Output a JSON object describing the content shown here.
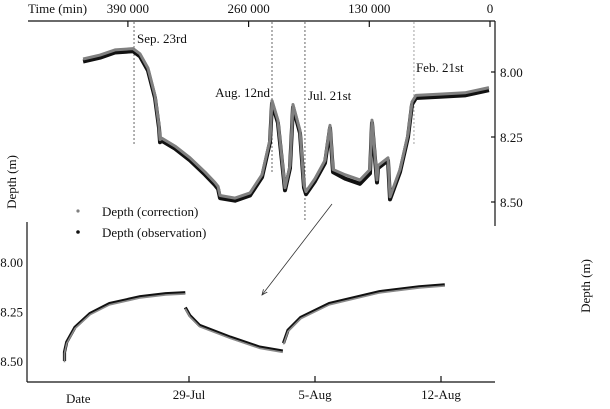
{
  "chart_data": [
    {
      "type": "line",
      "xlabel": "Time (min)",
      "ylabel": "Depth (m)",
      "x_reversed": true,
      "y_inverted": true,
      "xlim": [
        0,
        460000
      ],
      "ylim": [
        7.85,
        8.58
      ],
      "x_ticks": [
        {
          "value": 390000,
          "label": "390 000"
        },
        {
          "value": 260000,
          "label": "260 000"
        },
        {
          "value": 130000,
          "label": "130 000"
        },
        {
          "value": 0,
          "label": "0"
        }
      ],
      "y_ticks": [
        {
          "value": 8.0,
          "label": "8.00"
        },
        {
          "value": 8.25,
          "label": "8.25"
        },
        {
          "value": 8.5,
          "label": "8.50"
        }
      ],
      "events": [
        {
          "t": 383400,
          "label": "Sep. 23rd"
        },
        {
          "t": 234800,
          "label": "Aug. 12nd"
        },
        {
          "t": 199300,
          "label": "Jul. 21st"
        },
        {
          "t": 81900,
          "label": "Feb. 21st"
        }
      ],
      "series": [
        {
          "name": "Depth (observation)",
          "color": "#111111",
          "points": [
            [
              438300,
              7.96
            ],
            [
              420000,
              7.945
            ],
            [
              403900,
              7.925
            ],
            [
              384500,
              7.92
            ],
            [
              377000,
              7.94
            ],
            [
              368300,
              7.995
            ],
            [
              360800,
              8.1
            ],
            [
              356500,
              8.215
            ],
            [
              355400,
              8.27
            ],
            [
              353300,
              8.265
            ],
            [
              339300,
              8.295
            ],
            [
              323100,
              8.34
            ],
            [
              307000,
              8.395
            ],
            [
              296200,
              8.435
            ],
            [
              292900,
              8.45
            ],
            [
              290800,
              8.485
            ],
            [
              274600,
              8.495
            ],
            [
              258500,
              8.475
            ],
            [
              245600,
              8.405
            ],
            [
              237000,
              8.27
            ],
            [
              234800,
              8.12
            ],
            [
              228400,
              8.195
            ],
            [
              220800,
              8.455
            ],
            [
              215400,
              8.37
            ],
            [
              212200,
              8.135
            ],
            [
              204600,
              8.235
            ],
            [
              200300,
              8.445
            ],
            [
              198200,
              8.47
            ],
            [
              188500,
              8.42
            ],
            [
              177700,
              8.35
            ],
            [
              172300,
              8.215
            ],
            [
              169100,
              8.385
            ],
            [
              156200,
              8.41
            ],
            [
              140000,
              8.43
            ],
            [
              129200,
              8.39
            ],
            [
              127100,
              8.195
            ],
            [
              121700,
              8.425
            ],
            [
              120600,
              8.37
            ],
            [
              109900,
              8.34
            ],
            [
              107700,
              8.49
            ],
            [
              96900,
              8.385
            ],
            [
              88300,
              8.25
            ],
            [
              84000,
              8.125
            ],
            [
              79700,
              8.1
            ],
            [
              53900,
              8.095
            ],
            [
              27000,
              8.09
            ],
            [
              1100,
              8.07
            ]
          ]
        },
        {
          "name": "Depth (correction)",
          "color": "#808080",
          "points": [
            [
              438300,
              7.95
            ],
            [
              420000,
              7.935
            ],
            [
              403900,
              7.915
            ],
            [
              384500,
              7.91
            ],
            [
              377000,
              7.93
            ],
            [
              368300,
              7.985
            ],
            [
              360800,
              8.09
            ],
            [
              356500,
              8.205
            ],
            [
              355400,
              8.26
            ],
            [
              353300,
              8.255
            ],
            [
              339300,
              8.285
            ],
            [
              323100,
              8.33
            ],
            [
              307000,
              8.385
            ],
            [
              296200,
              8.425
            ],
            [
              292900,
              8.44
            ],
            [
              290800,
              8.475
            ],
            [
              274600,
              8.485
            ],
            [
              258500,
              8.465
            ],
            [
              245600,
              8.395
            ],
            [
              237000,
              8.26
            ],
            [
              234800,
              8.11
            ],
            [
              228400,
              8.185
            ],
            [
              220800,
              8.445
            ],
            [
              215400,
              8.36
            ],
            [
              212200,
              8.125
            ],
            [
              204600,
              8.225
            ],
            [
              200300,
              8.435
            ],
            [
              198200,
              8.46
            ],
            [
              188500,
              8.41
            ],
            [
              177700,
              8.34
            ],
            [
              172300,
              8.205
            ],
            [
              169100,
              8.375
            ],
            [
              156200,
              8.395
            ],
            [
              140000,
              8.415
            ],
            [
              129200,
              8.375
            ],
            [
              127100,
              8.185
            ],
            [
              121700,
              8.415
            ],
            [
              120600,
              8.36
            ],
            [
              109900,
              8.33
            ],
            [
              107700,
              8.48
            ],
            [
              96900,
              8.375
            ],
            [
              88300,
              8.24
            ],
            [
              84000,
              8.115
            ],
            [
              79700,
              8.09
            ],
            [
              53900,
              8.085
            ],
            [
              27000,
              8.08
            ],
            [
              1100,
              8.06
            ]
          ]
        }
      ],
      "legend": [
        {
          "label": "Depth (correction)",
          "color": "#808080"
        },
        {
          "label": "Depth (observation)",
          "color": "#111111"
        }
      ],
      "legend_placement": "bottom-left"
    },
    {
      "type": "line",
      "xlabel": "Date",
      "ylabel": "Depth (m)",
      "y_inverted": true,
      "ylim": [
        7.85,
        8.57
      ],
      "x_ticks": [
        {
          "value": "Jul 29 00:00",
          "label": "29-Jul"
        },
        {
          "value": "Aug 5 00:00",
          "label": "5-Aug"
        },
        {
          "value": "Aug 12 00:00",
          "label": "12-Aug"
        }
      ],
      "y_ticks": [
        {
          "value": 8.0,
          "label": "8.00"
        },
        {
          "value": 8.25,
          "label": "8.25"
        },
        {
          "value": 8.5,
          "label": "8.50"
        }
      ],
      "series": [
        {
          "name": "Depth (observation)",
          "color": "#111111",
          "points": [
            [
              "Jul 22 02:00",
              8.5
            ],
            [
              "Jul 22 02:00",
              8.455
            ],
            [
              "Jul 22 05:00",
              8.405
            ],
            [
              "Jul 22 16:00",
              8.33
            ],
            [
              "Jul 23 12:00",
              8.26
            ],
            [
              "Jul 24 14:00",
              8.21
            ],
            [
              "Jul 26 07:00",
              8.175
            ],
            [
              "Jul 27 17:00",
              8.16
            ],
            [
              "Jul 28 19:00",
              8.155
            ]
          ]
        },
        {
          "name": "Depth (observation)",
          "color": "#111111",
          "points": [
            [
              "Jul 28 19:00",
              8.23
            ],
            [
              "Jul 29 01:00",
              8.27
            ],
            [
              "Jul 29 14:00",
              8.32
            ],
            [
              "Jul 31 07:00",
              8.38
            ],
            [
              "Aug 1 22:00",
              8.43
            ],
            [
              "Aug 3 05:00",
              8.45
            ]
          ]
        },
        {
          "name": "Depth (observation)",
          "color": "#111111",
          "points": [
            [
              "Aug 3 06:00",
              8.41
            ],
            [
              "Aug 3 12:00",
              8.345
            ],
            [
              "Aug 4 05:00",
              8.28
            ],
            [
              "Aug 5 19:00",
              8.21
            ],
            [
              "Aug 8 14:00",
              8.15
            ],
            [
              "Aug 10 19:00",
              8.125
            ],
            [
              "Aug 12 05:00",
              8.115
            ]
          ]
        }
      ]
    }
  ]
}
